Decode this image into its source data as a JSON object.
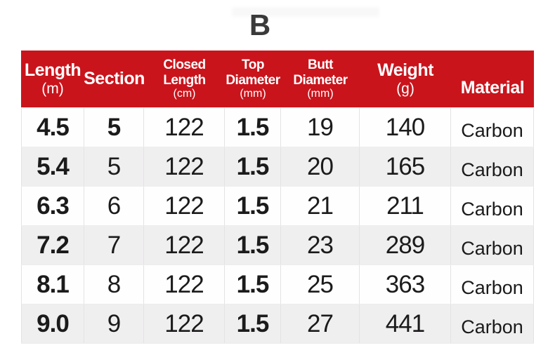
{
  "page": {
    "title": "B"
  },
  "colors": {
    "header_bg": "#C9141C",
    "header_text": "#FFFFFF",
    "row_bg": "#FFFFFF",
    "row_alt_bg": "#F0EFF0",
    "grid_line": "#E3E3E3",
    "title_text": "#3A3A3A",
    "body_text": "#1B1B1B"
  },
  "table": {
    "columns": [
      {
        "title": "Length",
        "unit": "(m)"
      },
      {
        "title": "Section",
        "unit": ""
      },
      {
        "title": "Closed Length",
        "unit": "(cm)"
      },
      {
        "title": "Top Diameter",
        "unit": "(mm)"
      },
      {
        "title": "Butt Diameter",
        "unit": "(mm)"
      },
      {
        "title": "Weight",
        "unit": "(g)"
      },
      {
        "title": "Material",
        "unit": ""
      }
    ],
    "rows": [
      [
        "4.5",
        "5",
        "122",
        "1.5",
        "19",
        "140",
        "Carbon"
      ],
      [
        "5.4",
        "5",
        "122",
        "1.5",
        "20",
        "165",
        "Carbon"
      ],
      [
        "6.3",
        "6",
        "122",
        "1.5",
        "21",
        "211",
        "Carbon"
      ],
      [
        "7.2",
        "7",
        "122",
        "1.5",
        "23",
        "289",
        "Carbon"
      ],
      [
        "8.1",
        "8",
        "122",
        "1.5",
        "25",
        "363",
        "Carbon"
      ],
      [
        "9.0",
        "9",
        "122",
        "1.5",
        "27",
        "441",
        "Carbon"
      ]
    ]
  },
  "chart_data": {
    "type": "table",
    "title": "B",
    "columns": [
      "Length (m)",
      "Section",
      "Closed Length (cm)",
      "Top Diameter (mm)",
      "Butt Diameter (mm)",
      "Weight (g)",
      "Material"
    ],
    "rows": [
      [
        "4.5",
        "5",
        "122",
        "1.5",
        "19",
        "140",
        "Carbon"
      ],
      [
        "5.4",
        "5",
        "122",
        "1.5",
        "20",
        "165",
        "Carbon"
      ],
      [
        "6.3",
        "6",
        "122",
        "1.5",
        "21",
        "211",
        "Carbon"
      ],
      [
        "7.2",
        "7",
        "122",
        "1.5",
        "23",
        "289",
        "Carbon"
      ],
      [
        "8.1",
        "8",
        "122",
        "1.5",
        "25",
        "363",
        "Carbon"
      ],
      [
        "9.0",
        "9",
        "122",
        "1.5",
        "27",
        "441",
        "Carbon"
      ]
    ]
  }
}
